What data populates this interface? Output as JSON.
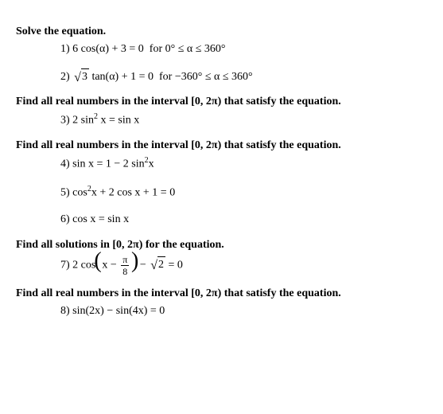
{
  "h1": "Solve the equation.",
  "p1_num": "1) ",
  "p1_a": "6 cos(α) + 3 = 0  for 0° ≤ α ≤ 360°",
  "p2_num": "2) ",
  "p2_rad": "3",
  "p2_b": " tan(α) + 1 = 0  for −360° ≤ α ≤ 360°",
  "h2": "Find all real numbers in the interval [0, 2π) that satisfy the equation.",
  "p3_num": "3) ",
  "p3_a": "2 sin",
  "p3_exp": "2",
  "p3_b": " x = sin x",
  "h3": "Find all real numbers in the interval [0, 2π) that satisfy the equation.",
  "p4_num": "4) ",
  "p4_a": "sin x = 1 − 2 sin",
  "p4_exp": "2",
  "p4_b": "x",
  "p5_num": "5) ",
  "p5_a": "cos",
  "p5_exp": "2",
  "p5_b": "x + 2 cos x + 1 = 0",
  "p6_num": "6) ",
  "p6_a": "cos x = sin x",
  "h4": "Find all solutions in [0, 2π) for the equation.",
  "p7_num": "7) ",
  "p7_a": "2 cos",
  "p7_inner_a": "x − ",
  "p7_frac_num": "π",
  "p7_frac_den": "8",
  "p7_c": " − ",
  "p7_rad": "2",
  "p7_d": " = 0",
  "h5": "Find all real numbers in the interval [0, 2π) that satisfy the equation.",
  "p8_num": "8) ",
  "p8_a": "sin(2x) − sin(4x) = 0"
}
